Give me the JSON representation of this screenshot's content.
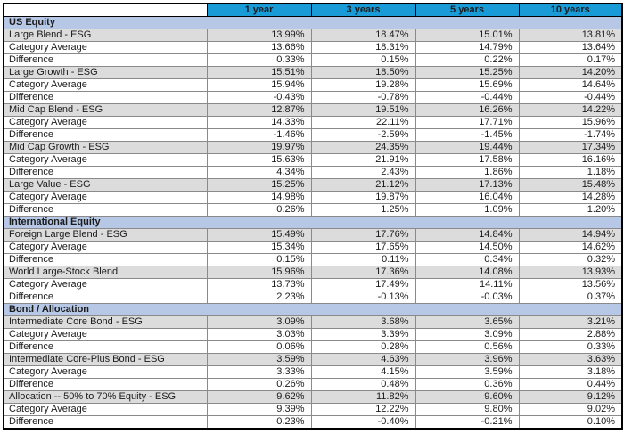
{
  "palette": {
    "header_bg": "#189BD7",
    "header_text": "#FFFFFF",
    "section_bg": "#B6C8E6",
    "fund_row_bg": "#DCDCDC",
    "row_bg": "#FFFFFF",
    "text": "#1B1B1B",
    "grid_line": "#8A8A8A",
    "outer_border": "#000000",
    "diff_red": "#E5242B",
    "diff_green": "#13A96E"
  },
  "header": {
    "columns": [
      "",
      "1 year",
      "3 years",
      "5 years",
      "10 years"
    ]
  },
  "sections": [
    {
      "label": "US Equity",
      "rows": [
        {
          "label": "Large Blend - ESG",
          "kind": "fund",
          "values": [
            "13.99%",
            "18.47%",
            "15.01%",
            "13.81%"
          ],
          "colors": [
            null,
            null,
            null,
            null
          ]
        },
        {
          "label": "Category Average",
          "kind": "average",
          "values": [
            "13.66%",
            "18.31%",
            "14.79%",
            "13.64%"
          ],
          "colors": [
            null,
            null,
            null,
            null
          ]
        },
        {
          "label": "Difference",
          "kind": "difference",
          "values": [
            "0.33%",
            "0.15%",
            "0.22%",
            "0.17%"
          ],
          "colors": [
            null,
            null,
            null,
            null
          ]
        },
        {
          "label": "Large Growth - ESG",
          "kind": "fund",
          "values": [
            "15.51%",
            "18.50%",
            "15.25%",
            "14.20%"
          ],
          "colors": [
            null,
            null,
            null,
            null
          ]
        },
        {
          "label": "Category Average",
          "kind": "average",
          "values": [
            "15.94%",
            "19.28%",
            "15.69%",
            "14.64%"
          ],
          "colors": [
            null,
            null,
            null,
            null
          ]
        },
        {
          "label": "Difference",
          "kind": "difference",
          "values": [
            "-0.43%",
            "-0.78%",
            "-0.44%",
            "-0.44%"
          ],
          "colors": [
            null,
            "green",
            null,
            null
          ]
        },
        {
          "label": "Mid Cap Blend - ESG",
          "kind": "fund",
          "values": [
            "12.87%",
            "19.51%",
            "16.26%",
            "14.22%"
          ],
          "colors": [
            null,
            null,
            null,
            null
          ]
        },
        {
          "label": "Category Average",
          "kind": "average",
          "values": [
            "14.33%",
            "22.11%",
            "17.71%",
            "15.96%"
          ],
          "colors": [
            null,
            null,
            null,
            null
          ]
        },
        {
          "label": "Difference",
          "kind": "difference",
          "values": [
            "-1.46%",
            "-2.59%",
            "-1.45%",
            "-1.74%"
          ],
          "colors": [
            "green",
            "green",
            "green",
            "green"
          ]
        },
        {
          "label": "Mid Cap Growth - ESG",
          "kind": "fund",
          "values": [
            "19.97%",
            "24.35%",
            "19.44%",
            "17.34%"
          ],
          "colors": [
            null,
            null,
            null,
            null
          ]
        },
        {
          "label": "Category Average",
          "kind": "average",
          "values": [
            "15.63%",
            "21.91%",
            "17.58%",
            "16.16%"
          ],
          "colors": [
            null,
            null,
            null,
            null
          ]
        },
        {
          "label": "Difference",
          "kind": "difference",
          "values": [
            "4.34%",
            "2.43%",
            "1.86%",
            "1.18%"
          ],
          "colors": [
            "red",
            "red",
            "red",
            "red"
          ]
        },
        {
          "label": "Large Value - ESG",
          "kind": "fund",
          "values": [
            "15.25%",
            "21.12%",
            "17.13%",
            "15.48%"
          ],
          "colors": [
            null,
            null,
            null,
            null
          ]
        },
        {
          "label": "Category Average",
          "kind": "average",
          "values": [
            "14.98%",
            "19.87%",
            "16.04%",
            "14.28%"
          ],
          "colors": [
            null,
            null,
            null,
            null
          ]
        },
        {
          "label": "Difference",
          "kind": "difference",
          "values": [
            "0.26%",
            "1.25%",
            "1.09%",
            "1.20%"
          ],
          "colors": [
            null,
            "red",
            "red",
            "red"
          ]
        }
      ]
    },
    {
      "label": "International Equity",
      "rows": [
        {
          "label": "Foreign Large Blend - ESG",
          "kind": "fund",
          "values": [
            "15.49%",
            "17.76%",
            "14.84%",
            "14.94%"
          ],
          "colors": [
            null,
            null,
            null,
            null
          ]
        },
        {
          "label": "Category Average",
          "kind": "average",
          "values": [
            "15.34%",
            "17.65%",
            "14.50%",
            "14.62%"
          ],
          "colors": [
            null,
            null,
            null,
            null
          ]
        },
        {
          "label": "Difference",
          "kind": "difference",
          "values": [
            "0.15%",
            "0.11%",
            "0.34%",
            "0.32%"
          ],
          "colors": [
            null,
            null,
            null,
            null
          ]
        },
        {
          "label": "World Large-Stock Blend",
          "kind": "fund",
          "values": [
            "15.96%",
            "17.36%",
            "14.08%",
            "13.93%"
          ],
          "colors": [
            null,
            null,
            null,
            null
          ]
        },
        {
          "label": "Category Average",
          "kind": "average",
          "values": [
            "13.73%",
            "17.49%",
            "14.11%",
            "13.56%"
          ],
          "colors": [
            null,
            null,
            null,
            null
          ]
        },
        {
          "label": "Difference",
          "kind": "difference",
          "values": [
            "2.23%",
            "-0.13%",
            "-0.03%",
            "0.37%"
          ],
          "colors": [
            "red",
            null,
            null,
            null
          ]
        }
      ]
    },
    {
      "label": "Bond / Allocation",
      "rows": [
        {
          "label": "Intermediate Core Bond - ESG",
          "kind": "fund",
          "values": [
            "3.09%",
            "3.68%",
            "3.65%",
            "3.21%"
          ],
          "colors": [
            null,
            null,
            null,
            null
          ]
        },
        {
          "label": "Category Average",
          "kind": "average",
          "values": [
            "3.03%",
            "3.39%",
            "3.09%",
            "2.88%"
          ],
          "colors": [
            null,
            null,
            null,
            null
          ]
        },
        {
          "label": "Difference",
          "kind": "difference",
          "values": [
            "0.06%",
            "0.28%",
            "0.56%",
            "0.33%"
          ],
          "colors": [
            null,
            null,
            "red",
            null
          ]
        },
        {
          "label": "Intermediate Core-Plus Bond - ESG",
          "kind": "fund",
          "values": [
            "3.59%",
            "4.63%",
            "3.96%",
            "3.63%"
          ],
          "colors": [
            null,
            null,
            null,
            null
          ]
        },
        {
          "label": "Category Average",
          "kind": "average",
          "values": [
            "3.33%",
            "4.15%",
            "3.59%",
            "3.18%"
          ],
          "colors": [
            null,
            null,
            null,
            null
          ]
        },
        {
          "label": "Difference",
          "kind": "difference",
          "values": [
            "0.26%",
            "0.48%",
            "0.36%",
            "0.44%"
          ],
          "colors": [
            null,
            null,
            null,
            null
          ]
        },
        {
          "label": "Allocation -- 50% to 70% Equity - ESG",
          "kind": "fund",
          "values": [
            "9.62%",
            "11.82%",
            "9.60%",
            "9.12%"
          ],
          "colors": [
            null,
            null,
            null,
            null
          ]
        },
        {
          "label": "Category Average",
          "kind": "average",
          "values": [
            "9.39%",
            "12.22%",
            "9.80%",
            "9.02%"
          ],
          "colors": [
            null,
            null,
            null,
            null
          ]
        },
        {
          "label": "Difference",
          "kind": "difference",
          "values": [
            "0.23%",
            "-0.40%",
            "-0.21%",
            "0.10%"
          ],
          "colors": [
            null,
            null,
            null,
            null
          ]
        }
      ]
    }
  ]
}
